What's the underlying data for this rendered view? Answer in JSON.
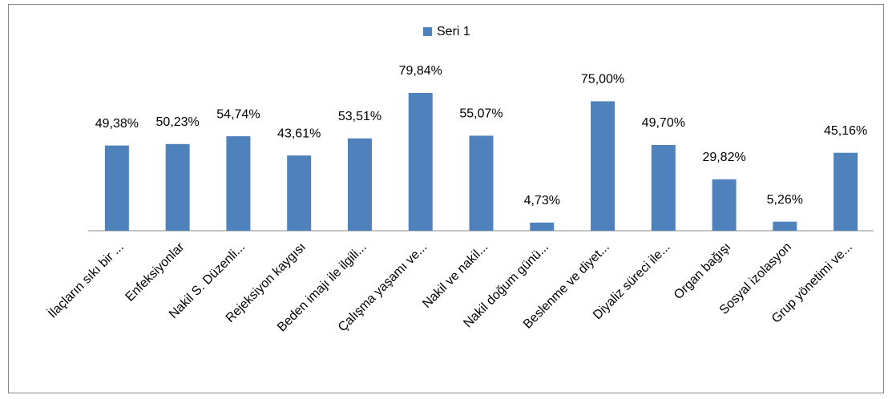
{
  "chart_data": {
    "type": "bar",
    "categories": [
      "İlaçların sıkı bir ...",
      "Enfeksiyonlar",
      "Nakil S. Düzenli...",
      "Rejeksiyon kaygısı",
      "Beden imajı ile ilgili...",
      "Çalışma yaşamı ve...",
      "Nakil ve nakil...",
      "Nakil doğum günü...",
      "Beslenme ve diyet...",
      "Diyaliz süreci ile...",
      "Organ bağışı",
      "Sosyal izolasyon",
      "Grup yönetimi ve..."
    ],
    "series": [
      {
        "name": "Seri 1",
        "color": "#4f81bd",
        "values": [
          49.38,
          50.23,
          54.74,
          43.61,
          53.51,
          79.84,
          55.07,
          4.73,
          75.0,
          49.7,
          29.82,
          5.26,
          45.16
        ],
        "value_labels": [
          "49,38%",
          "50,23%",
          "54,74%",
          "43,61%",
          "53,51%",
          "79,84%",
          "55,07%",
          "4,73%",
          "75,00%",
          "49,70%",
          "29,82%",
          "5,26%",
          "45,16%"
        ]
      }
    ],
    "legend": "top"
  }
}
